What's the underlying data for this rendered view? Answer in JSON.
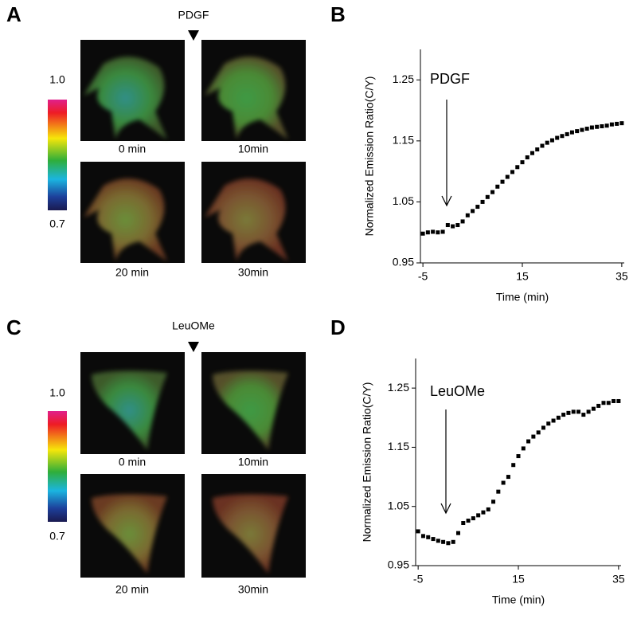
{
  "figure": {
    "panels": [
      {
        "letter": "A",
        "stimulus": "PDGF",
        "colorbar": {
          "max": "1.0",
          "min": "0.7"
        },
        "captions": [
          "0 min",
          "10min",
          "20 min",
          "30min"
        ]
      },
      {
        "letter": "C",
        "stimulus": "LeuOMe",
        "colorbar": {
          "max": "1.0",
          "min": "0.7"
        },
        "captions": [
          "0 min",
          "10min",
          "20 min",
          "30min"
        ]
      }
    ]
  },
  "chart_data": [
    {
      "type": "scatter",
      "panel": "B",
      "annotation": "PDGF",
      "xlabel": "Time (min)",
      "ylabel": "Normalized Emission Ratio(C/Y)",
      "color": "#000000",
      "x": [
        -5,
        -4,
        -3,
        -2,
        -1,
        0,
        1,
        2,
        3,
        4,
        5,
        6,
        7,
        8,
        9,
        10,
        11,
        12,
        13,
        14,
        15,
        16,
        17,
        18,
        19,
        20,
        21,
        22,
        23,
        24,
        25,
        26,
        27,
        28,
        29,
        30,
        31,
        32,
        33,
        34,
        35
      ],
      "values": [
        0.998,
        1.0,
        1.001,
        1.0,
        1.001,
        1.012,
        1.01,
        1.012,
        1.018,
        1.028,
        1.035,
        1.042,
        1.05,
        1.058,
        1.066,
        1.075,
        1.083,
        1.091,
        1.099,
        1.107,
        1.115,
        1.123,
        1.13,
        1.136,
        1.142,
        1.147,
        1.151,
        1.155,
        1.158,
        1.161,
        1.164,
        1.166,
        1.168,
        1.17,
        1.172,
        1.173,
        1.174,
        1.175,
        1.177,
        1.178,
        1.179
      ],
      "xlim": [
        -5.5,
        35.5
      ],
      "xticks": [
        -5,
        15,
        35
      ],
      "ylim": [
        0.95,
        1.3
      ],
      "yticks": [
        0.95,
        1.05,
        1.15,
        1.25
      ]
    },
    {
      "type": "scatter",
      "panel": "D",
      "annotation": "LeuOMe",
      "xlabel": "Time (min)",
      "ylabel": "Normalized Emission Ratio(C/Y)",
      "color": "#000000",
      "x": [
        -5,
        -4,
        -3,
        -2,
        -1,
        0,
        1,
        2,
        3,
        4,
        5,
        6,
        7,
        8,
        9,
        10,
        11,
        12,
        13,
        14,
        15,
        16,
        17,
        18,
        19,
        20,
        21,
        22,
        23,
        24,
        25,
        26,
        27,
        28,
        29,
        30,
        31,
        32,
        33,
        34,
        35
      ],
      "values": [
        1.008,
        1.0,
        0.998,
        0.995,
        0.992,
        0.99,
        0.988,
        0.99,
        1.005,
        1.022,
        1.026,
        1.03,
        1.035,
        1.04,
        1.045,
        1.058,
        1.075,
        1.09,
        1.1,
        1.12,
        1.135,
        1.148,
        1.16,
        1.168,
        1.175,
        1.183,
        1.19,
        1.195,
        1.2,
        1.205,
        1.208,
        1.21,
        1.21,
        1.205,
        1.21,
        1.215,
        1.22,
        1.225,
        1.225,
        1.228,
        1.228
      ],
      "xlim": [
        -5.5,
        35.5
      ],
      "xticks": [
        -5,
        15,
        35
      ],
      "ylim": [
        0.95,
        1.3
      ],
      "yticks": [
        0.95,
        1.05,
        1.15,
        1.25
      ]
    }
  ]
}
